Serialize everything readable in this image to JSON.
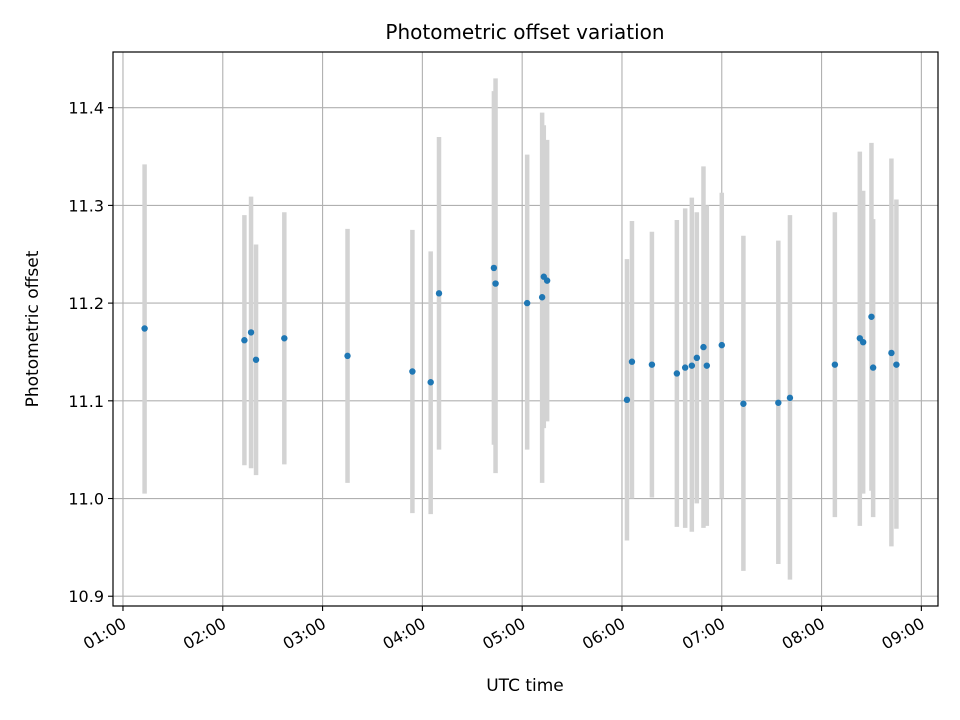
{
  "chart_data": {
    "type": "scatter",
    "title": "Photometric offset variation",
    "xlabel": "UTC time",
    "ylabel": "Photometric offset",
    "xlim": [
      "00:54",
      "09:10"
    ],
    "ylim": [
      10.89,
      11.457
    ],
    "x_ticks": [
      "01:00",
      "02:00",
      "03:00",
      "04:00",
      "05:00",
      "06:00",
      "07:00",
      "08:00",
      "09:00"
    ],
    "y_ticks": [
      "10.9",
      "11.0",
      "11.1",
      "11.2",
      "11.3",
      "11.4"
    ],
    "grid": true,
    "marker_color": "#1f77b4",
    "errorbar_color": "#d3d3d3",
    "points": [
      {
        "t": "01:13",
        "y": 11.174,
        "lo": 11.005,
        "hi": 11.342
      },
      {
        "t": "02:13",
        "y": 11.162,
        "lo": 11.034,
        "hi": 11.29
      },
      {
        "t": "02:17",
        "y": 11.17,
        "lo": 11.031,
        "hi": 11.309
      },
      {
        "t": "02:20",
        "y": 11.142,
        "lo": 11.024,
        "hi": 11.26
      },
      {
        "t": "02:37",
        "y": 11.164,
        "lo": 11.035,
        "hi": 11.293
      },
      {
        "t": "03:15",
        "y": 11.146,
        "lo": 11.016,
        "hi": 11.276
      },
      {
        "t": "03:54",
        "y": 11.13,
        "lo": 10.985,
        "hi": 11.275
      },
      {
        "t": "04:05",
        "y": 11.119,
        "lo": 10.984,
        "hi": 11.253
      },
      {
        "t": "04:10",
        "y": 11.21,
        "lo": 11.05,
        "hi": 11.37
      },
      {
        "t": "04:43",
        "y": 11.236,
        "lo": 11.055,
        "hi": 11.417
      },
      {
        "t": "04:44",
        "y": 11.22,
        "lo": 11.026,
        "hi": 11.43
      },
      {
        "t": "05:03",
        "y": 11.2,
        "lo": 11.05,
        "hi": 11.352
      },
      {
        "t": "05:12",
        "y": 11.206,
        "lo": 11.016,
        "hi": 11.395
      },
      {
        "t": "05:13",
        "y": 11.227,
        "lo": 11.072,
        "hi": 11.382
      },
      {
        "t": "05:15",
        "y": 11.223,
        "lo": 11.079,
        "hi": 11.367
      },
      {
        "t": "06:03",
        "y": 11.101,
        "lo": 10.957,
        "hi": 11.245
      },
      {
        "t": "06:06",
        "y": 11.14,
        "lo": 11.0,
        "hi": 11.284
      },
      {
        "t": "06:18",
        "y": 11.137,
        "lo": 11.001,
        "hi": 11.273
      },
      {
        "t": "06:33",
        "y": 11.128,
        "lo": 10.971,
        "hi": 11.285
      },
      {
        "t": "06:38",
        "y": 11.134,
        "lo": 10.97,
        "hi": 11.297
      },
      {
        "t": "06:42",
        "y": 11.136,
        "lo": 10.966,
        "hi": 11.308
      },
      {
        "t": "06:45",
        "y": 11.144,
        "lo": 10.995,
        "hi": 11.293
      },
      {
        "t": "06:49",
        "y": 11.155,
        "lo": 10.97,
        "hi": 11.34
      },
      {
        "t": "06:51",
        "y": 11.136,
        "lo": 10.972,
        "hi": 11.3
      },
      {
        "t": "07:00",
        "y": 11.157,
        "lo": 11.0,
        "hi": 11.313
      },
      {
        "t": "07:13",
        "y": 11.097,
        "lo": 10.926,
        "hi": 11.269
      },
      {
        "t": "07:34",
        "y": 11.098,
        "lo": 10.933,
        "hi": 11.264
      },
      {
        "t": "07:41",
        "y": 11.103,
        "lo": 10.917,
        "hi": 11.29
      },
      {
        "t": "08:08",
        "y": 11.137,
        "lo": 10.981,
        "hi": 11.293
      },
      {
        "t": "08:23",
        "y": 11.164,
        "lo": 10.972,
        "hi": 11.355
      },
      {
        "t": "08:25",
        "y": 11.16,
        "lo": 11.005,
        "hi": 11.315
      },
      {
        "t": "08:30",
        "y": 11.186,
        "lo": 11.008,
        "hi": 11.364
      },
      {
        "t": "08:31",
        "y": 11.134,
        "lo": 10.981,
        "hi": 11.286
      },
      {
        "t": "08:42",
        "y": 11.149,
        "lo": 10.951,
        "hi": 11.348
      },
      {
        "t": "08:45",
        "y": 11.137,
        "lo": 10.969,
        "hi": 11.306
      }
    ]
  }
}
